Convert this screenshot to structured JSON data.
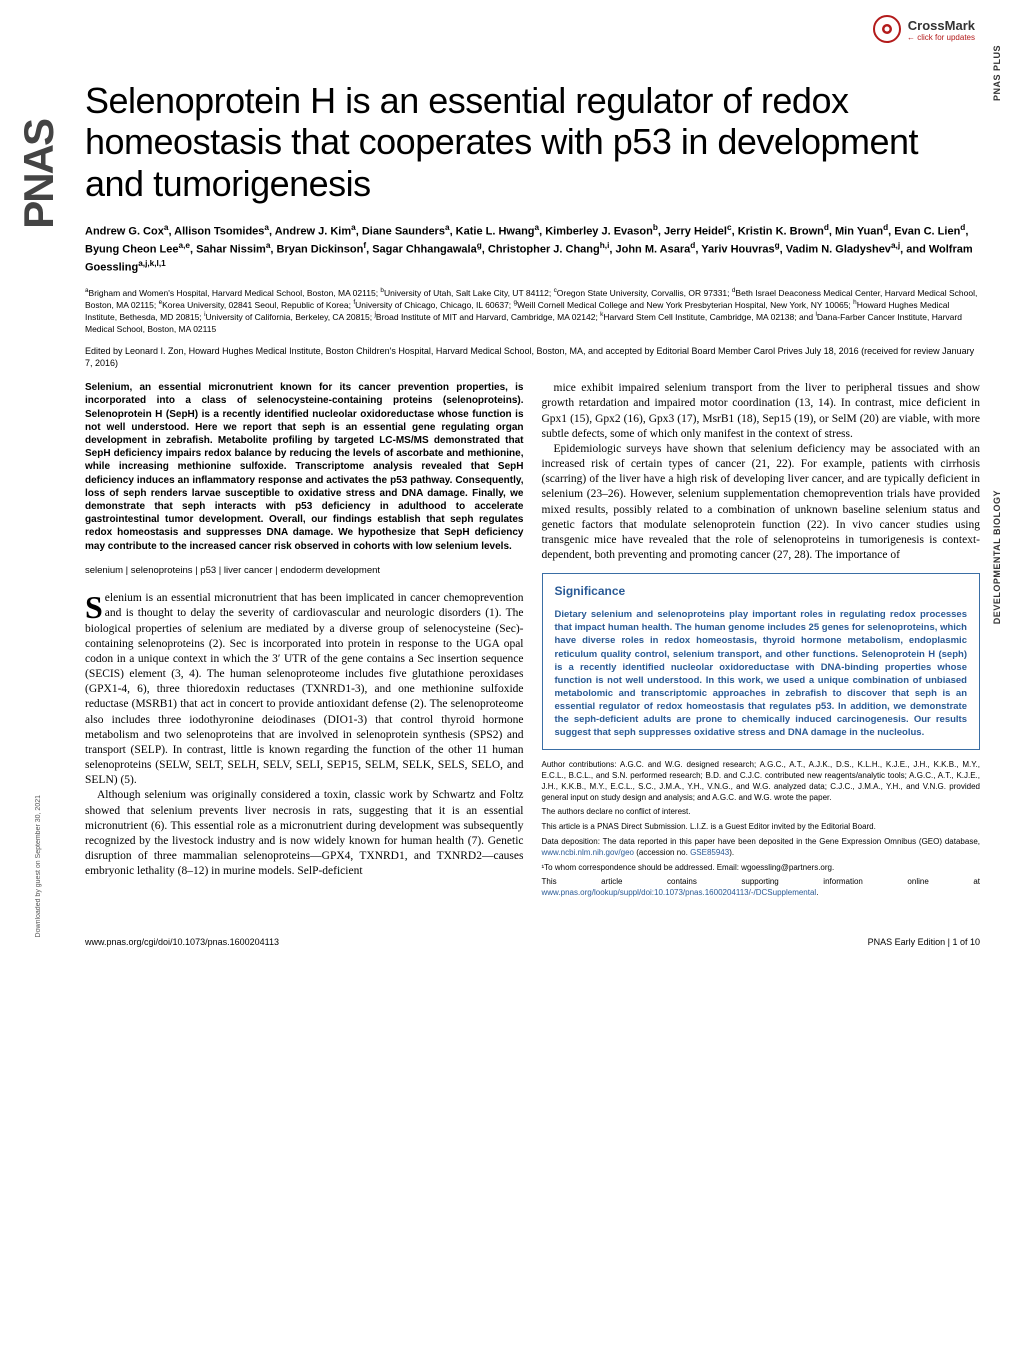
{
  "meta": {
    "journal_sidebar": "PNAS",
    "crossmark_label": "CrossMark",
    "crossmark_sub": "← click for updates",
    "right_label_1": "PNAS PLUS",
    "right_label_2": "DEVELOPMENTAL BIOLOGY",
    "download_note": "Downloaded by guest on September 30, 2021"
  },
  "title": "Selenoprotein H is an essential regulator of redox homeostasis that cooperates with p53 in development and tumorigenesis",
  "authors_html": "Andrew G. Cox<sup>a</sup>, Allison Tsomides<sup>a</sup>, Andrew J. Kim<sup>a</sup>, Diane Saunders<sup>a</sup>, Katie L. Hwang<sup>a</sup>, Kimberley J. Evason<sup>b</sup>, Jerry Heidel<sup>c</sup>, Kristin K. Brown<sup>d</sup>, Min Yuan<sup>d</sup>, Evan C. Lien<sup>d</sup>, Byung Cheon Lee<sup>a,e</sup>, Sahar Nissim<sup>a</sup>, Bryan Dickinson<sup>f</sup>, Sagar Chhangawala<sup>g</sup>, Christopher J. Chang<sup>h,i</sup>, John M. Asara<sup>d</sup>, Yariv Houvras<sup>g</sup>, Vadim N. Gladyshev<sup>a,j</sup>, and Wolfram Goessling<sup>a,j,k,l,1</sup>",
  "affiliations_html": "<sup>a</sup>Brigham and Women's Hospital, Harvard Medical School, Boston, MA 02115; <sup>b</sup>University of Utah, Salt Lake City, UT 84112; <sup>c</sup>Oregon State University, Corvallis, OR 97331; <sup>d</sup>Beth Israel Deaconess Medical Center, Harvard Medical School, Boston, MA 02115; <sup>e</sup>Korea University, 02841 Seoul, Republic of Korea; <sup>f</sup>University of Chicago, Chicago, IL 60637; <sup>g</sup>Weill Cornell Medical College and New York Presbyterian Hospital, New York, NY 10065; <sup>h</sup>Howard Hughes Medical Institute, Bethesda, MD 20815; <sup>i</sup>University of California, Berkeley, CA 20815; <sup>j</sup>Broad Institute of MIT and Harvard, Cambridge, MA 02142; <sup>k</sup>Harvard Stem Cell Institute, Cambridge, MA 02138; and <sup>l</sup>Dana-Farber Cancer Institute, Harvard Medical School, Boston, MA 02115",
  "edited": "Edited by Leonard I. Zon, Howard Hughes Medical Institute, Boston Children's Hospital, Harvard Medical School, Boston, MA, and accepted by Editorial Board Member Carol Prives July 18, 2016 (received for review January 7, 2016)",
  "abstract": "Selenium, an essential micronutrient known for its cancer prevention properties, is incorporated into a class of selenocysteine-containing proteins (selenoproteins). Selenoprotein H (SepH) is a recently identified nucleolar oxidoreductase whose function is not well understood. Here we report that seph is an essential gene regulating organ development in zebrafish. Metabolite profiling by targeted LC-MS/MS demonstrated that SepH deficiency impairs redox balance by reducing the levels of ascorbate and methionine, while increasing methionine sulfoxide. Transcriptome analysis revealed that SepH deficiency induces an inflammatory response and activates the p53 pathway. Consequently, loss of seph renders larvae susceptible to oxidative stress and DNA damage. Finally, we demonstrate that seph interacts with p53 deficiency in adulthood to accelerate gastrointestinal tumor development. Overall, our findings establish that seph regulates redox homeostasis and suppresses DNA damage. We hypothesize that SepH deficiency may contribute to the increased cancer risk observed in cohorts with low selenium levels.",
  "keywords": "selenium | selenoproteins | p53 | liver cancer | endoderm development",
  "body_para_1": "elenium is an essential micronutrient that has been implicated in cancer chemoprevention and is thought to delay the severity of cardiovascular and neurologic disorders (1). The biological properties of selenium are mediated by a diverse group of selenocysteine (Sec)-containing selenoproteins (2). Sec is incorporated into protein in response to the UGA opal codon in a unique context in which the 3′ UTR of the gene contains a Sec insertion sequence (SECIS) element (3, 4). The human selenoproteome includes five glutathione peroxidases (GPX1-4, 6), three thioredoxin reductases (TXNRD1-3), and one methionine sulfoxide reductase (MSRB1) that act in concert to provide antioxidant defense (2). The selenoproteome also includes three iodothyronine deiodinases (DIO1-3) that control thyroid hormone metabolism and two selenoproteins that are involved in selenoprotein synthesis (SPS2) and transport (SELP). In contrast, little is known regarding the function of the other 11 human selenoproteins (SELW, SELT, SELH, SELV, SELI, SEP15, SELM, SELK, SELS, SELO, and SELN) (5).",
  "body_para_2": "Although selenium was originally considered a toxin, classic work by Schwartz and Foltz showed that selenium prevents liver necrosis in rats, suggesting that it is an essential micronutrient (6). This essential role as a micronutrient during development was subsequently recognized by the livestock industry and is now widely known for human health (7). Genetic disruption of three mammalian selenoproteins—GPX4, TXNRD1, and TXNRD2—causes embryonic lethality (8–12) in murine models. SelP-deficient",
  "body_para_3": "mice exhibit impaired selenium transport from the liver to peripheral tissues and show growth retardation and impaired motor coordination (13, 14). In contrast, mice deficient in Gpx1 (15), Gpx2 (16), Gpx3 (17), MsrB1 (18), Sep15 (19), or SelM (20) are viable, with more subtle defects, some of which only manifest in the context of stress.",
  "body_para_4": "Epidemiologic surveys have shown that selenium deficiency may be associated with an increased risk of certain types of cancer (21, 22). For example, patients with cirrhosis (scarring) of the liver have a high risk of developing liver cancer, and are typically deficient in selenium (23–26). However, selenium supplementation chemoprevention trials have provided mixed results, possibly related to a combination of unknown baseline selenium status and genetic factors that modulate selenoprotein function (22). In vivo cancer studies using transgenic mice have revealed that the role of selenoproteins in tumorigenesis is context-dependent, both preventing and promoting cancer (27, 28). The importance of",
  "significance": {
    "title": "Significance",
    "body": "Dietary selenium and selenoproteins play important roles in regulating redox processes that impact human health. The human genome includes 25 genes for selenoproteins, which have diverse roles in redox homeostasis, thyroid hormone metabolism, endoplasmic reticulum quality control, selenium transport, and other functions. Selenoprotein H (seph) is a recently identified nucleolar oxidoreductase with DNA-binding properties whose function is not well understood. In this work, we used a unique combination of unbiased metabolomic and transcriptomic approaches in zebrafish to discover that seph is an essential regulator of redox homeostasis that regulates p53. In addition, we demonstrate the seph-deficient adults are prone to chemically induced carcinogenesis. Our results suggest that seph suppresses oxidative stress and DNA damage in the nucleolus."
  },
  "footnotes": {
    "contributions": "Author contributions: A.G.C. and W.G. designed research; A.G.C., A.T., A.J.K., D.S., K.L.H., K.J.E., J.H., K.K.B., M.Y., E.C.L., B.C.L., and S.N. performed research; B.D. and C.J.C. contributed new reagents/analytic tools; A.G.C., A.T., K.J.E., J.H., K.K.B., M.Y., E.C.L., S.C., J.M.A., Y.H., V.N.G., and W.G. analyzed data; C.J.C., J.M.A., Y.H., and V.N.G. provided general input on study design and analysis; and A.G.C. and W.G. wrote the paper.",
    "conflict": "The authors declare no conflict of interest.",
    "submission": "This article is a PNAS Direct Submission. L.I.Z. is a Guest Editor invited by the Editorial Board.",
    "data_deposition": "Data deposition: The data reported in this paper have been deposited in the Gene Expression Omnibus (GEO) database,",
    "data_deposition_link": "www.ncbi.nlm.nih.gov/geo",
    "data_deposition_accession_prefix": "(accession no.",
    "data_deposition_accession": "GSE85943",
    "data_deposition_suffix": ").",
    "correspondence": "¹To whom correspondence should be addressed. Email: wgoessling@partners.org.",
    "supporting": "This article contains supporting information online at",
    "supporting_link": "www.pnas.org/lookup/suppl/doi:10.1073/pnas.1600204113/-/DCSupplemental",
    "supporting_suffix": "."
  },
  "footer": {
    "doi": "www.pnas.org/cgi/doi/10.1073/pnas.1600204113",
    "page_info": "PNAS Early Edition | 1 of 10"
  },
  "colors": {
    "link_color": "#2a5a95",
    "sig_border": "#3a6ea5",
    "crossmark_red": "#b31b1b"
  }
}
